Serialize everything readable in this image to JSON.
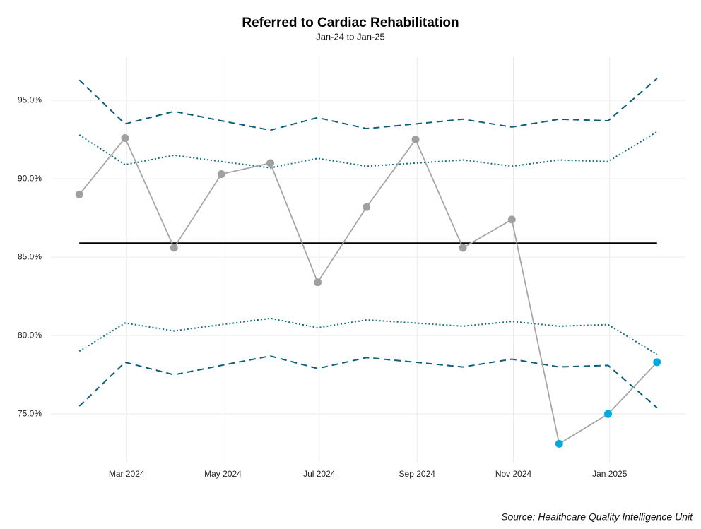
{
  "chart_data": {
    "type": "line",
    "title": "Referred to Cardiac Rehabilitation",
    "subtitle": "Jan-24 to Jan-25",
    "source": "Source: Healthcare Quality Intelligence Unit",
    "x": [
      "2024-01-31",
      "2024-02-29",
      "2024-03-31",
      "2024-04-30",
      "2024-05-31",
      "2024-06-30",
      "2024-07-31",
      "2024-08-31",
      "2024-09-30",
      "2024-10-31",
      "2024-11-30",
      "2024-12-31",
      "2025-01-31"
    ],
    "xlim": [
      "2024-01-13",
      "2025-02-18"
    ],
    "xticks": [
      {
        "value": "2024-03-01",
        "label": "Mar 2024"
      },
      {
        "value": "2024-05-01",
        "label": "May 2024"
      },
      {
        "value": "2024-07-01",
        "label": "Jul 2024"
      },
      {
        "value": "2024-09-01",
        "label": "Sep 2024"
      },
      {
        "value": "2024-11-01",
        "label": "Nov 2024"
      },
      {
        "value": "2025-01-01",
        "label": "Jan 2025"
      }
    ],
    "ylim": [
      71.9,
      97.8
    ],
    "yticks": [
      {
        "value": 75,
        "label": "75.0%"
      },
      {
        "value": 80,
        "label": "80.0%"
      },
      {
        "value": 85,
        "label": "85.0%"
      },
      {
        "value": 90,
        "label": "90.0%"
      },
      {
        "value": 95,
        "label": "95.0%"
      }
    ],
    "grid": true,
    "series": [
      {
        "color": "#0b5f7a",
        "style": "dashed",
        "values": [
          96.3,
          93.5,
          94.3,
          93.7,
          93.1,
          93.9,
          93.2,
          93.5,
          93.8,
          93.3,
          93.8,
          93.7,
          96.4
        ]
      },
      {
        "color": "#0b5f7a",
        "style": "dashed",
        "values": [
          75.5,
          78.3,
          77.5,
          78.1,
          78.7,
          77.9,
          78.6,
          78.3,
          78.0,
          78.5,
          78.0,
          78.1,
          75.4
        ]
      },
      {
        "color": "#0f6e80",
        "style": "dotted",
        "values": [
          92.8,
          90.9,
          91.5,
          91.1,
          90.7,
          91.3,
          90.8,
          91.0,
          91.2,
          90.8,
          91.2,
          91.1,
          93.0
        ]
      },
      {
        "color": "#0f6e80",
        "style": "dotted",
        "values": [
          79.0,
          80.8,
          80.3,
          80.7,
          81.1,
          80.5,
          81.0,
          80.8,
          80.6,
          80.9,
          80.6,
          80.7,
          78.8
        ]
      },
      {
        "color": "#000000",
        "style": "solid",
        "values": [
          85.9,
          85.9,
          85.9,
          85.9,
          85.9,
          85.9,
          85.9,
          85.9,
          85.9,
          85.9,
          85.9,
          85.9,
          85.9
        ]
      },
      {
        "color": "#a6a6a6",
        "style": "solid",
        "markers": true,
        "values": [
          89.0,
          92.6,
          85.6,
          90.3,
          91.0,
          83.4,
          88.2,
          92.5,
          85.6,
          87.4,
          73.1,
          75.0,
          78.3
        ],
        "point_colors": [
          "#a0a0a0",
          "#a0a0a0",
          "#a0a0a0",
          "#a0a0a0",
          "#a0a0a0",
          "#a0a0a0",
          "#a0a0a0",
          "#a0a0a0",
          "#a0a0a0",
          "#a0a0a0",
          "#00a9e0",
          "#00a9e0",
          "#00a9e0"
        ]
      }
    ]
  }
}
